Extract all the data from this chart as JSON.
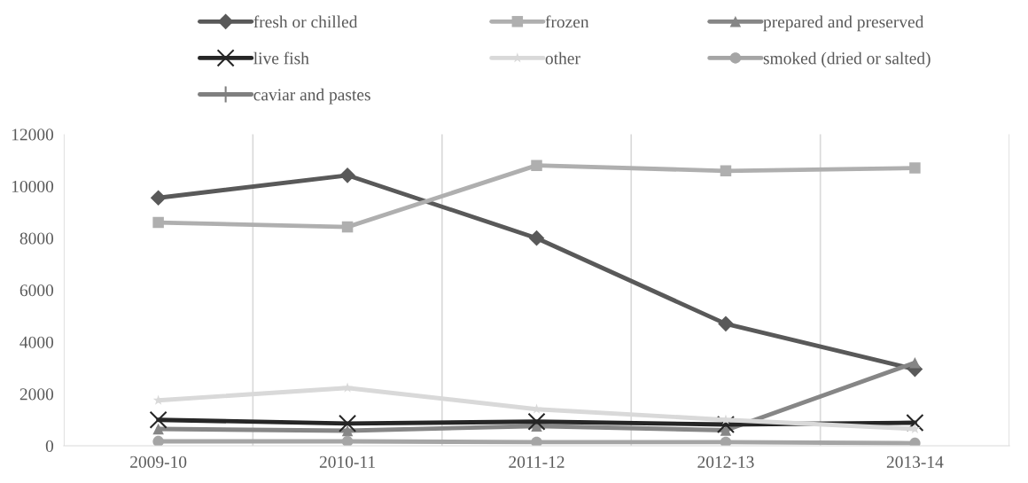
{
  "chart_data": {
    "type": "line",
    "categories": [
      "2009-10",
      "2010-11",
      "2011-12",
      "2012-13",
      "2013-14"
    ],
    "series": [
      {
        "name": "fresh or chilled",
        "color": "#595959",
        "marker": "diamond",
        "values": [
          9550,
          10420,
          8000,
          4700,
          2950
        ]
      },
      {
        "name": "frozen",
        "color": "#afafaf",
        "marker": "square",
        "values": [
          8600,
          8430,
          10800,
          10590,
          10700
        ]
      },
      {
        "name": "prepared and preserved",
        "color": "#868686",
        "marker": "triangle",
        "values": [
          650,
          580,
          760,
          600,
          3200
        ]
      },
      {
        "name": "live fish",
        "color": "#262626",
        "marker": "cross",
        "values": [
          1000,
          860,
          930,
          820,
          890
        ]
      },
      {
        "name": "other",
        "color": "#d9d9d9",
        "marker": "star",
        "values": [
          1750,
          2230,
          1410,
          1000,
          650
        ]
      },
      {
        "name": "smoked (dried or salted)",
        "color": "#a5a5a5",
        "marker": "circle",
        "values": [
          170,
          170,
          140,
          140,
          100
        ]
      },
      {
        "name": "caviar and pastes",
        "color": "#7f7f7f",
        "marker": "plus",
        "values": [
          null,
          null,
          null,
          null,
          null
        ]
      }
    ],
    "ylim": [
      0,
      12000
    ],
    "yticks": [
      0,
      2000,
      4000,
      6000,
      8000,
      10000,
      12000
    ],
    "grid": "x",
    "legend": "top"
  }
}
